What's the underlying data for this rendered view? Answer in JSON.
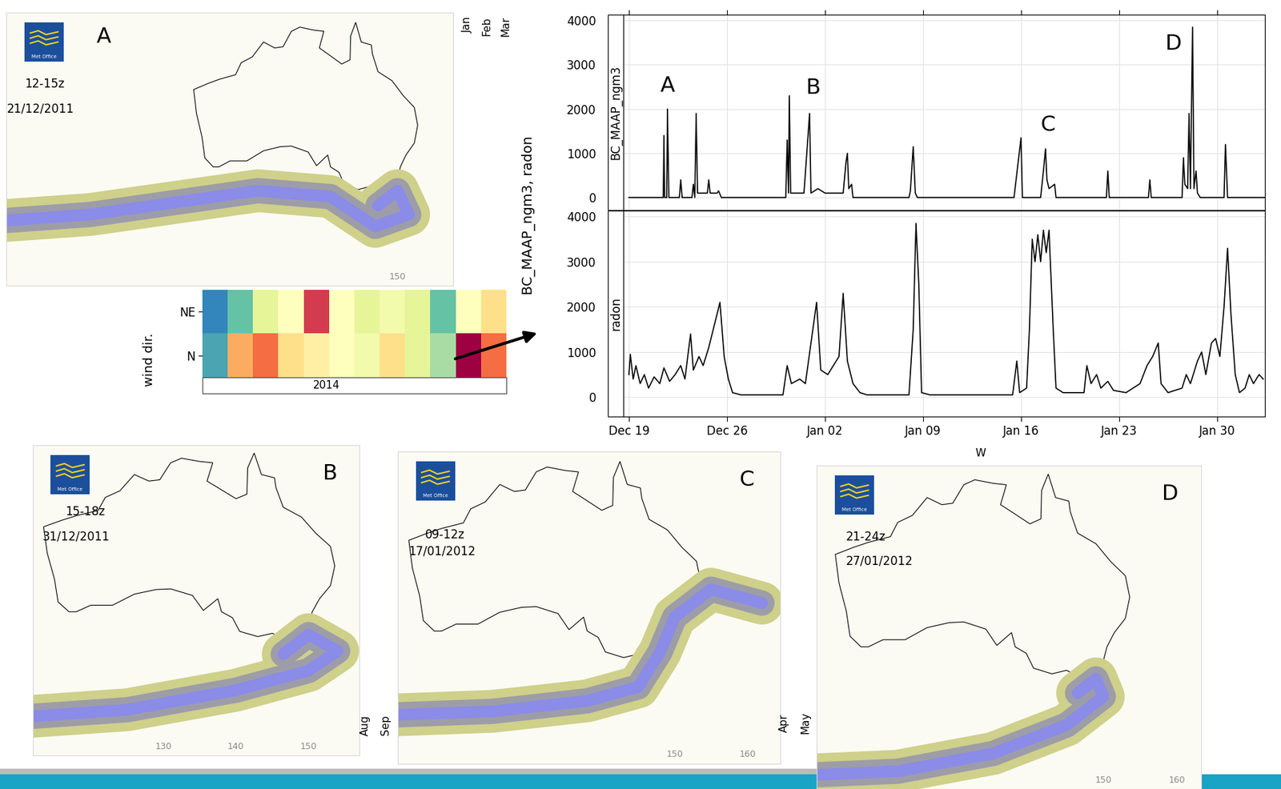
{
  "chart_data": [
    {
      "type": "map",
      "label": "A",
      "time": "12-15z",
      "date": "21/12/2011",
      "logo": "Met Office",
      "xlim": [
        80,
        160
      ],
      "ylim": [
        -55,
        -9
      ],
      "xticks": [
        150
      ],
      "tick_labels": "x"
    },
    {
      "type": "map",
      "label": "B",
      "time": "15-18z",
      "date": "31/12/2011",
      "logo": "Met Office",
      "xlim": [
        112,
        157
      ],
      "ylim": [
        -57,
        -9.5
      ],
      "xticks": [
        130,
        140,
        150
      ],
      "tick_labels": "x"
    },
    {
      "type": "map",
      "label": "C",
      "time": "09-12z",
      "date": "17/01/2012",
      "logo": "Met Office",
      "xlim": [
        112,
        164.5
      ],
      "ylim": [
        -54,
        -9.3
      ],
      "xticks": [
        150,
        160
      ],
      "tick_labels": "x"
    },
    {
      "type": "map",
      "label": "D",
      "time": "21-24z",
      "date": "27/01/2012",
      "logo": "Met Office",
      "xlim": [
        111,
        163.3
      ],
      "ylim": [
        -55,
        -9.5
      ],
      "xticks": [
        150,
        160
      ],
      "tick_labels": "x"
    },
    {
      "type": "heatmap",
      "ylabel": "wind dir.",
      "rows": [
        "NE",
        "N"
      ],
      "cells": [
        [
          1,
          2,
          4,
          5,
          9,
          5,
          4,
          4.5,
          4,
          2,
          5,
          6
        ],
        [
          1.5,
          7,
          8,
          6,
          5.5,
          5,
          4.5,
          6,
          4,
          3,
          10,
          8
        ]
      ],
      "cell_range": [
        0,
        10
      ],
      "strip": "2014",
      "month_labels": [
        "Jan",
        "Feb",
        "Mar",
        "Aug",
        "Sep",
        "Apr",
        "May"
      ],
      "other_labels": [
        "W"
      ],
      "tick_labels": "y"
    },
    {
      "type": "line",
      "ylabel": "BC_MAAP_ngm3, radon",
      "color": "#000000",
      "grid": true,
      "xlim": [
        -0.4,
        45.4
      ],
      "xticks": [
        {
          "value": 0,
          "label": "Dec 19"
        },
        {
          "value": 7,
          "label": "Dec 26"
        },
        {
          "value": 14,
          "label": "Jan 02"
        },
        {
          "value": 21,
          "label": "Jan 09"
        },
        {
          "value": 28,
          "label": "Jan 16"
        },
        {
          "value": 35,
          "label": "Jan 23"
        },
        {
          "value": 42,
          "label": "Jan 30"
        }
      ],
      "panels": [
        {
          "name": "BC_MAAP_ngm3",
          "ylim": [
            -280,
            4130
          ],
          "yticks": [
            0,
            1000,
            2000,
            3000,
            4000
          ],
          "x": [
            0,
            2.45,
            2.5,
            2.55,
            2.7,
            2.75,
            2.85,
            3.6,
            3.7,
            3.8,
            4.5,
            4.6,
            4.7,
            4.8,
            4.9,
            5.6,
            5.7,
            5.8,
            6.3,
            6.4,
            6.6,
            11.2,
            11.3,
            11.4,
            11.45,
            11.55,
            12.5,
            12.9,
            13.0,
            13.5,
            14.0,
            15.3,
            15.5,
            15.6,
            15.7,
            15.9,
            16.0,
            20.0,
            20.1,
            20.3,
            20.45,
            20.6,
            27.5,
            28.0,
            28.1,
            29.4,
            29.5,
            29.6,
            29.75,
            29.85,
            30.0,
            30.4,
            30.5,
            34.1,
            34.2,
            34.3,
            37.1,
            37.2,
            37.3,
            39.5,
            39.6,
            39.7,
            39.9,
            40.0,
            40.1,
            40.25,
            40.35,
            40.5,
            40.6,
            40.8,
            42.5,
            42.6,
            42.75,
            45.4
          ],
          "values": [
            0,
            0,
            1400,
            0,
            0,
            2000,
            0,
            0,
            400,
            0,
            0,
            300,
            0,
            1900,
            100,
            100,
            400,
            100,
            100,
            150,
            0,
            0,
            1300,
            100,
            2300,
            100,
            100,
            1900,
            100,
            200,
            100,
            100,
            800,
            1000,
            200,
            300,
            0,
            0,
            150,
            1150,
            100,
            0,
            0,
            1350,
            0,
            0,
            300,
            600,
            1100,
            400,
            200,
            300,
            0,
            0,
            600,
            0,
            0,
            400,
            0,
            0,
            900,
            300,
            200,
            1900,
            200,
            3850,
            200,
            600,
            100,
            0,
            0,
            1200,
            0,
            0
          ],
          "annotations": [
            {
              "text": "A",
              "x": 2.74,
              "y": 2520
            },
            {
              "text": "B",
              "x": 13.2,
              "y": 2470
            },
            {
              "text": "C",
              "x": 29.9,
              "y": 1640
            },
            {
              "text": "D",
              "x": 38.9,
              "y": 3480
            }
          ]
        },
        {
          "name": "radon",
          "ylim": [
            -430,
            4130
          ],
          "yticks": [
            0,
            1000,
            2000,
            3000,
            4000
          ],
          "x": [
            0,
            0.1,
            0.3,
            0.5,
            0.8,
            1.1,
            1.4,
            1.8,
            2.2,
            2.5,
            2.9,
            3.3,
            3.7,
            4.0,
            4.4,
            4.6,
            5.0,
            5.3,
            5.7,
            6.1,
            6.5,
            6.8,
            7.1,
            7.4,
            8,
            11.0,
            11.3,
            11.6,
            12.2,
            12.6,
            13.4,
            13.7,
            14.2,
            14.6,
            15.0,
            15.3,
            15.6,
            16.0,
            16.5,
            17,
            20.0,
            20.3,
            20.5,
            20.7,
            20.9,
            21.5,
            27.4,
            27.7,
            27.9,
            28.4,
            28.6,
            28.8,
            29.0,
            29.2,
            29.4,
            29.6,
            29.8,
            30.0,
            30.3,
            30.5,
            31.0,
            32.5,
            32.7,
            33.0,
            33.4,
            33.7,
            34.2,
            34.6,
            35.5,
            36.5,
            37.0,
            37.4,
            37.8,
            38.0,
            38.5,
            39.5,
            39.8,
            40.1,
            40.6,
            40.9,
            41.2,
            41.6,
            41.9,
            42.2,
            42.5,
            42.75,
            43.0,
            43.3,
            43.6,
            44.0,
            44.3,
            44.6,
            45.0,
            45.3
          ],
          "values": [
            500,
            950,
            400,
            700,
            300,
            500,
            200,
            450,
            300,
            650,
            350,
            500,
            700,
            400,
            1400,
            600,
            900,
            700,
            1100,
            1600,
            2100,
            900,
            400,
            100,
            50,
            50,
            700,
            300,
            400,
            300,
            2100,
            600,
            500,
            700,
            900,
            2300,
            800,
            300,
            100,
            50,
            50,
            1500,
            3850,
            2500,
            100,
            50,
            50,
            800,
            100,
            200,
            1500,
            3500,
            3000,
            3600,
            3000,
            3700,
            3200,
            3700,
            1500,
            200,
            100,
            100,
            700,
            300,
            500,
            200,
            350,
            150,
            100,
            300,
            700,
            900,
            1200,
            300,
            100,
            200,
            500,
            300,
            800,
            1000,
            500,
            1200,
            1300,
            900,
            2000,
            3300,
            1800,
            500,
            100,
            200,
            500,
            300,
            500,
            400
          ]
        }
      ]
    }
  ]
}
